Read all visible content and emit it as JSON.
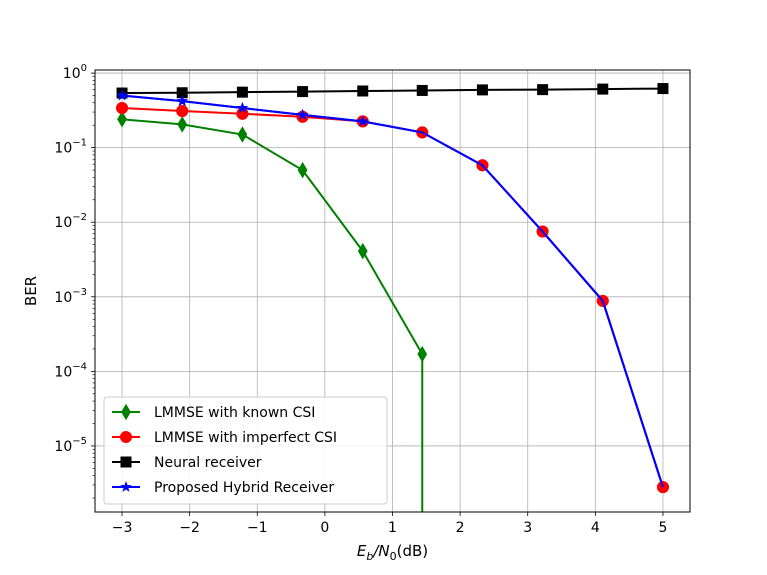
{
  "chart_data": {
    "type": "line",
    "xlabel": {
      "main": "E",
      "sub": "b",
      "slash": "/N",
      "sub2": "0",
      "unit": "(dB)"
    },
    "ylabel": "BER",
    "yscale": "log",
    "xlim": [
      -3.4,
      5.4
    ],
    "ylim": [
      1.3e-06,
      1.1
    ],
    "grid": true,
    "legend_position": "lower-left",
    "x_ticks": [
      -3,
      -2,
      -1,
      0,
      1,
      2,
      3,
      4,
      5
    ],
    "x_tick_labels": [
      "−3",
      "−2",
      "−1",
      "0",
      "1",
      "2",
      "3",
      "4",
      "5"
    ],
    "y_ticks": [
      {
        "value": 1,
        "base": "10",
        "exp": "0"
      },
      {
        "value": 0.1,
        "base": "10",
        "exp": "−1"
      },
      {
        "value": 0.01,
        "base": "10",
        "exp": "−2"
      },
      {
        "value": 0.001,
        "base": "10",
        "exp": "−3"
      },
      {
        "value": 0.0001,
        "base": "10",
        "exp": "−4"
      },
      {
        "value": 1e-05,
        "base": "10",
        "exp": "−5"
      }
    ],
    "series": [
      {
        "name": "LMMSE with known CSI",
        "color": "#008000",
        "marker": "diamond",
        "x": [
          -3,
          -2.11,
          -1.22,
          -0.33,
          0.56,
          1.44,
          1.44
        ],
        "y": [
          0.24,
          0.205,
          0.15,
          0.05,
          0.0041,
          0.00017,
          1e-07
        ],
        "marker_count": 6
      },
      {
        "name": "LMMSE with imperfect CSI",
        "color": "#ff0000",
        "marker": "circle",
        "x": [
          -3,
          -2.11,
          -1.22,
          -0.33,
          0.56,
          1.44,
          2.33,
          3.22,
          4.11,
          5
        ],
        "y": [
          0.34,
          0.31,
          0.285,
          0.26,
          0.225,
          0.16,
          0.058,
          0.0075,
          0.00088,
          2.8e-06
        ]
      },
      {
        "name": "Neural receiver",
        "color": "#000000",
        "marker": "square",
        "x": [
          -3,
          -2.11,
          -1.22,
          -0.33,
          0.56,
          1.44,
          2.33,
          3.22,
          4.11,
          5
        ],
        "y": [
          0.54,
          0.545,
          0.555,
          0.565,
          0.575,
          0.585,
          0.595,
          0.6,
          0.61,
          0.62
        ]
      },
      {
        "name": "Proposed Hybrid Receiver",
        "color": "#0000ff",
        "marker": "star",
        "x": [
          -3,
          -2.11,
          -1.22,
          -0.33,
          0.56,
          1.44,
          2.33,
          3.22,
          4.11,
          5
        ],
        "y": [
          0.5,
          0.42,
          0.34,
          0.275,
          0.225,
          0.16,
          0.058,
          0.0075,
          0.00088,
          2.8e-06
        ]
      }
    ]
  }
}
